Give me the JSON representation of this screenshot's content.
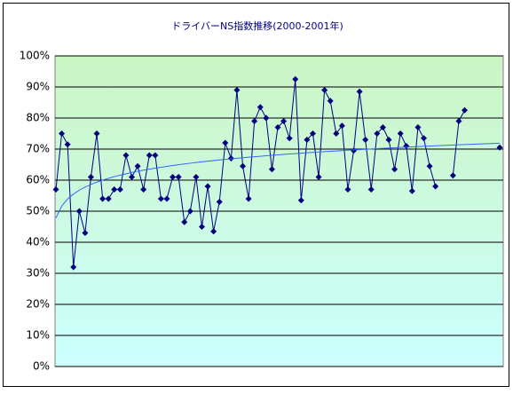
{
  "chart_data": {
    "type": "line",
    "title": "ドライバーNS指数推移(2000-2001年)",
    "categories": [
      null,
      null,
      null,
      null,
      null,
      null,
      null,
      null,
      null,
      null,
      null,
      null,
      null,
      null,
      null,
      null,
      null,
      null,
      null,
      null,
      null,
      null,
      null,
      null,
      null,
      null,
      null,
      null,
      null,
      null,
      null,
      null,
      null,
      null,
      null,
      null,
      null,
      null,
      null,
      null,
      null,
      null,
      null,
      null,
      null,
      null,
      null,
      null,
      null,
      null,
      null,
      null,
      null,
      null,
      null,
      null,
      null,
      null,
      null,
      null,
      null,
      null,
      null,
      null,
      null,
      null,
      null,
      null,
      null,
      null,
      null,
      null,
      null,
      null,
      null,
      null,
      null
    ],
    "series": [
      {
        "color": "#000080",
        "values": [
          57,
          75,
          71.5,
          32,
          50,
          43,
          61,
          75,
          54,
          54,
          57,
          57,
          68,
          61,
          64.5,
          57,
          68,
          68,
          54,
          54,
          61,
          61,
          46.5,
          50,
          61,
          45,
          58,
          43.5,
          53,
          72,
          67,
          89,
          64.5,
          54,
          79,
          83.5,
          80,
          63.5,
          77,
          79,
          73.5,
          92.5,
          53.5,
          73,
          75,
          61,
          89,
          85.5,
          75,
          77.5,
          57,
          69.5,
          88.5,
          73,
          57,
          75,
          77,
          73,
          63.5,
          75,
          71,
          56.5,
          77,
          73.5,
          64.5,
          58,
          null,
          null,
          61.5,
          79,
          82.5,
          null,
          null,
          null,
          null,
          null,
          70.5
        ]
      }
    ],
    "trendline": "log",
    "trendline_color": "#3366ff",
    "ylim": [
      0,
      100
    ],
    "yticks": [
      {
        "value": 0,
        "label": "0%"
      },
      {
        "value": 10,
        "label": "10%"
      },
      {
        "value": 20,
        "label": "20%"
      },
      {
        "value": 30,
        "label": "30%"
      },
      {
        "value": 40,
        "label": "40%"
      },
      {
        "value": 50,
        "label": "50%"
      },
      {
        "value": 60,
        "label": "60%"
      },
      {
        "value": 70,
        "label": "70%"
      },
      {
        "value": 80,
        "label": "80%"
      },
      {
        "value": 90,
        "label": "90%"
      },
      {
        "value": 100,
        "label": "100%"
      }
    ],
    "grid": true
  }
}
